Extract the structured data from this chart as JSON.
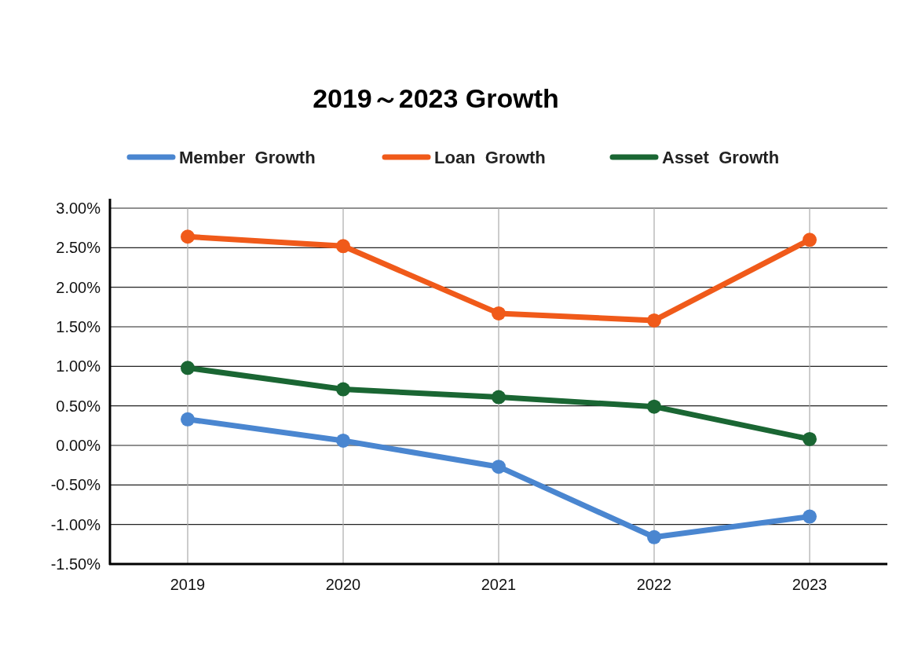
{
  "chart_data": {
    "type": "line",
    "title": "2019～2023 Growth",
    "categories": [
      "2019",
      "2020",
      "2021",
      "2022",
      "2023"
    ],
    "series": [
      {
        "name": "Member  Growth",
        "color": "#4a86d0",
        "values": [
          0.33,
          0.06,
          -0.27,
          -1.16,
          -0.9
        ]
      },
      {
        "name": "Loan  Growth",
        "color": "#f05a1a",
        "values": [
          2.64,
          2.52,
          1.67,
          1.58,
          2.6
        ]
      },
      {
        "name": "Asset  Growth",
        "color": "#1a6633",
        "values": [
          0.98,
          0.71,
          0.61,
          0.49,
          0.08
        ]
      }
    ],
    "ylim": [
      -1.5,
      3.0
    ],
    "yticks": [
      {
        "value": -1.5,
        "label": "-1.50%"
      },
      {
        "value": -1.0,
        "label": "-1.00%"
      },
      {
        "value": -0.5,
        "label": "-0.50%"
      },
      {
        "value": 0,
        "label": "0.00%"
      },
      {
        "value": 0.5,
        "label": "0.50%"
      },
      {
        "value": 1.0,
        "label": "1.00%"
      },
      {
        "value": 1.5,
        "label": "1.50%"
      },
      {
        "value": 2.0,
        "label": "2.00%"
      },
      {
        "value": 2.5,
        "label": "2.50%"
      },
      {
        "value": 3.0,
        "label": "3.00%"
      }
    ],
    "grid": true,
    "legend": "top",
    "marker": "circle",
    "line_style": "solid"
  }
}
